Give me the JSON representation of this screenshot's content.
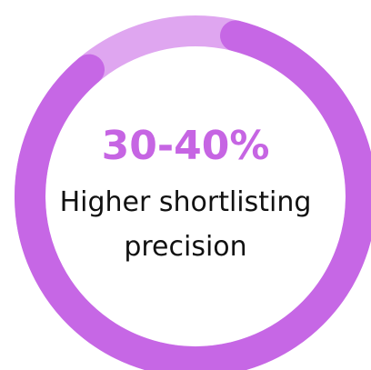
{
  "chart_data": {
    "type": "pie",
    "variant": "donut",
    "headline": "30-40%",
    "caption_line_1": "Higher shortlisting",
    "caption_line_2": "precision",
    "range_low_percent": 30,
    "range_high_percent": 40,
    "highlight_start_percent": 0,
    "highlight_end_percent": 85,
    "colors": {
      "highlight": "#c667e5",
      "track": "#dfa6f0",
      "headline": "#c665e3",
      "caption": "#111111",
      "background": "#ffffff"
    }
  }
}
